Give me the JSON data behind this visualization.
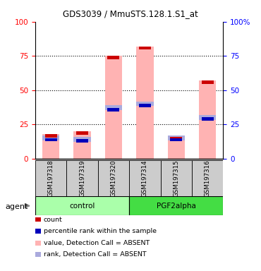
{
  "title": "GDS3039 / MmuSTS.128.1.S1_at",
  "samples": [
    "GSM197318",
    "GSM197319",
    "GSM197320",
    "GSM197314",
    "GSM197315",
    "GSM197316"
  ],
  "pink_values": [
    18,
    20,
    75,
    82,
    16,
    57
  ],
  "blue_values": [
    15,
    14,
    37,
    40,
    15,
    30
  ],
  "ylim": [
    0,
    100
  ],
  "yticks": [
    0,
    25,
    50,
    75,
    100
  ],
  "y2ticklabels": [
    "0",
    "25",
    "50",
    "75",
    "100%"
  ],
  "pink_color": "#FFB3B3",
  "blue_color": "#AAAADD",
  "red_color": "#CC0000",
  "dark_blue_color": "#0000BB",
  "bar_width": 0.55,
  "legend_items": [
    {
      "color": "#CC0000",
      "label": "count"
    },
    {
      "color": "#0000BB",
      "label": "percentile rank within the sample"
    },
    {
      "color": "#FFB3B3",
      "label": "value, Detection Call = ABSENT"
    },
    {
      "color": "#AAAADD",
      "label": "rank, Detection Call = ABSENT"
    }
  ],
  "control_color": "#AAFFAA",
  "pgf_color": "#44DD44",
  "sample_box_color": "#CCCCCC",
  "agent_label": "agent"
}
